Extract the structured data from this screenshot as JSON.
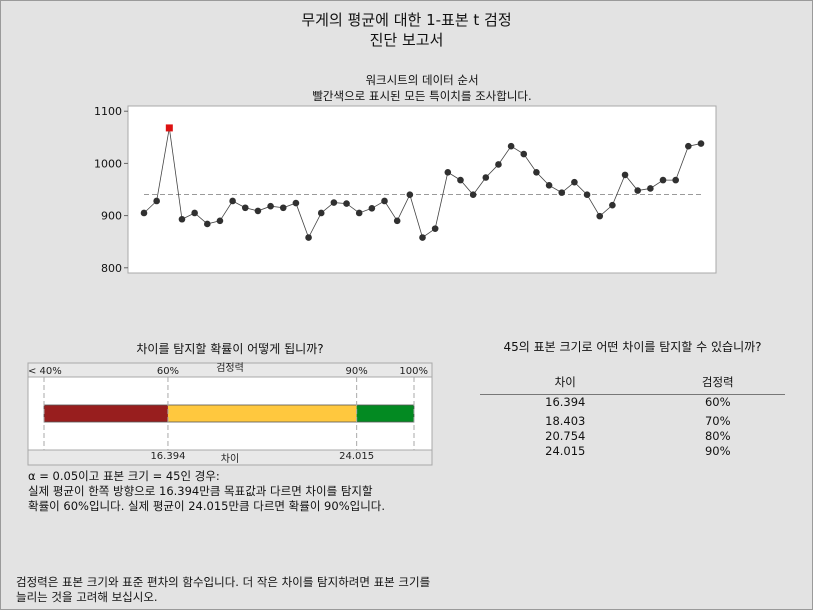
{
  "report": {
    "title": "무게의 평균에 대한 1-표본 t 검정",
    "subtitle": "진단 보고서"
  },
  "colors": {
    "background": "#e3e3e3",
    "point": "#303030",
    "outlier": "#dd1111",
    "low_power": "#981e1e",
    "mid_power": "#ffc83e",
    "high_power": "#038a22"
  },
  "chart_data": [
    {
      "type": "line",
      "title": "워크시트의 데이터 순서",
      "subtitle": "빨간색으로 표시된 모든 특이치를 조사합니다.",
      "ylim": [
        790,
        1110
      ],
      "yticks": [
        800,
        900,
        1000,
        1100
      ],
      "ytick_labels": [
        "800",
        "900",
        "1000",
        "1100"
      ],
      "reference_line": 940.4,
      "outlier_index": 2,
      "values": [
        905,
        928,
        1068,
        893,
        905,
        884,
        890,
        928,
        915,
        909,
        918,
        915,
        924,
        858,
        905,
        925,
        923,
        905,
        914,
        928,
        890,
        940,
        858,
        875,
        983,
        968,
        940,
        973,
        998,
        1033,
        1018,
        983,
        958,
        944,
        964,
        940,
        899,
        920,
        978,
        948,
        952,
        968,
        968,
        1033,
        1038
      ]
    },
    {
      "type": "bar",
      "title": "차이를 탐지할 확률이 어떻게 됩니까?",
      "top_axis_label": "검정력",
      "bottom_axis_label": "차이",
      "top_ticks": [
        {
          "label": "< 40%",
          "pos": 0
        },
        {
          "label": "60%",
          "pos": 0.335
        },
        {
          "label": "90%",
          "pos": 0.845
        },
        {
          "label": "100%",
          "pos": 1
        }
      ],
      "segments": [
        {
          "from": 0,
          "to": 0.335,
          "color": "#981e1e"
        },
        {
          "from": 0.335,
          "to": 0.845,
          "color": "#ffc83e"
        },
        {
          "from": 0.845,
          "to": 1,
          "color": "#038a22"
        }
      ],
      "bottom_ticks": [
        {
          "label": "16.394",
          "pos": 0.335
        },
        {
          "label": "24.015",
          "pos": 0.845
        }
      ]
    }
  ],
  "description": {
    "line1": "α = 0.05이고 표본 크기 = 45인 경우:",
    "line2": "실제 평균이 한쪽 방향으로 16.394만큼 목표값과 다르면 차이를 탐지할",
    "line3": "확률이 60%입니다. 실제 평균이 24.015만큼 다르면 확률이 90%입니다."
  },
  "power_table": {
    "title": "45의 표본 크기로 어떤 차이를 탐지할 수 있습니까?",
    "col_diff": "차이",
    "col_power": "검정력",
    "rows": [
      {
        "diff": "16.394",
        "power": "60%"
      },
      {
        "diff": "18.403",
        "power": "70%"
      },
      {
        "diff": "20.754",
        "power": "80%"
      },
      {
        "diff": "24.015",
        "power": "90%"
      }
    ]
  },
  "footer": {
    "line1": "검정력은 표본 크기와 표준 편차의 함수입니다. 더 작은 차이를 탐지하려면 표본 크기를",
    "line2": "늘리는 것을 고려해 보십시오."
  }
}
